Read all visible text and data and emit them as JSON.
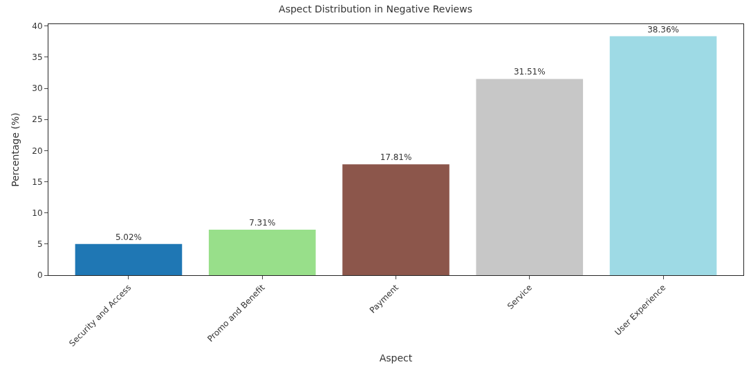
{
  "chart_data": {
    "type": "bar",
    "title": "Aspect Distribution in Negative Reviews",
    "xlabel": "Aspect",
    "ylabel": "Percentage (%)",
    "categories": [
      "Security and Access",
      "Promo and Benefit",
      "Payment",
      "Service",
      "User Experience"
    ],
    "values": [
      5.02,
      7.31,
      17.81,
      31.51,
      38.36
    ],
    "value_labels": [
      "5.02%",
      "7.31%",
      "17.81%",
      "31.51%",
      "38.36%"
    ],
    "colors": [
      "#1f77b4",
      "#98df8a",
      "#8c564b",
      "#c7c7c7",
      "#9edae5"
    ],
    "ylim": [
      0,
      40.3
    ],
    "yticks": [
      0,
      5,
      10,
      15,
      20,
      25,
      30,
      35,
      40
    ],
    "grid": false
  }
}
